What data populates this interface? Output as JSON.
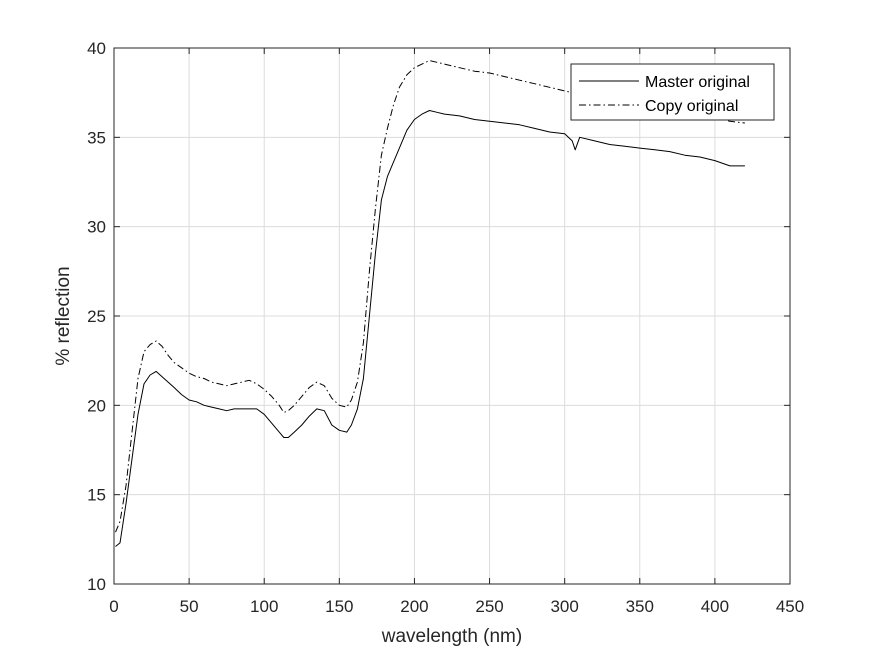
{
  "chart_data": {
    "type": "line",
    "title": "",
    "xlabel": "wavelength (nm)",
    "ylabel": "% reflection",
    "xlim": [
      0,
      450
    ],
    "ylim": [
      10,
      40
    ],
    "xticks": [
      0,
      50,
      100,
      150,
      200,
      250,
      300,
      350,
      400,
      450
    ],
    "yticks": [
      10,
      15,
      20,
      25,
      30,
      35,
      40
    ],
    "grid": true,
    "legend": {
      "location": "top-right"
    },
    "series": [
      {
        "name": "Master original",
        "style": "solid",
        "color": "#000000",
        "x": [
          1,
          4,
          8,
          12,
          16,
          20,
          24,
          28,
          32,
          36,
          40,
          45,
          50,
          55,
          60,
          65,
          70,
          75,
          80,
          85,
          90,
          95,
          100,
          105,
          110,
          113,
          116,
          120,
          125,
          130,
          135,
          140,
          145,
          150,
          155,
          158,
          162,
          166,
          170,
          174,
          178,
          182,
          186,
          190,
          195,
          200,
          205,
          210,
          215,
          220,
          230,
          240,
          250,
          260,
          270,
          280,
          290,
          300,
          305,
          307,
          310,
          320,
          330,
          340,
          350,
          360,
          370,
          380,
          390,
          400,
          410,
          420
        ],
        "y": [
          12.1,
          12.3,
          14.5,
          17.0,
          19.5,
          21.2,
          21.7,
          21.9,
          21.6,
          21.3,
          21.0,
          20.6,
          20.3,
          20.2,
          20.0,
          19.9,
          19.8,
          19.7,
          19.8,
          19.8,
          19.8,
          19.8,
          19.5,
          19.0,
          18.5,
          18.2,
          18.2,
          18.5,
          18.9,
          19.4,
          19.8,
          19.7,
          18.9,
          18.6,
          18.5,
          18.9,
          19.8,
          21.5,
          25.0,
          28.5,
          31.5,
          32.8,
          33.6,
          34.4,
          35.4,
          36.0,
          36.3,
          36.5,
          36.4,
          36.3,
          36.2,
          36.0,
          35.9,
          35.8,
          35.7,
          35.5,
          35.3,
          35.2,
          34.8,
          34.3,
          35.0,
          34.8,
          34.6,
          34.5,
          34.4,
          34.3,
          34.2,
          34.0,
          33.9,
          33.7,
          33.4,
          33.4
        ]
      },
      {
        "name": "Copy original",
        "style": "dashdot",
        "color": "#000000",
        "x": [
          1,
          4,
          8,
          12,
          16,
          20,
          24,
          28,
          32,
          36,
          40,
          45,
          50,
          55,
          60,
          65,
          70,
          75,
          80,
          85,
          90,
          95,
          100,
          105,
          110,
          113,
          116,
          120,
          125,
          130,
          135,
          140,
          145,
          150,
          155,
          158,
          162,
          166,
          170,
          174,
          178,
          182,
          186,
          190,
          195,
          200,
          205,
          210,
          215,
          220,
          230,
          240,
          250,
          260,
          270,
          280,
          290,
          300,
          305,
          307,
          310,
          320,
          330,
          340,
          350,
          360,
          370,
          380,
          390,
          400,
          410,
          420
        ],
        "y": [
          12.9,
          13.5,
          15.5,
          18.5,
          21.5,
          23.0,
          23.4,
          23.6,
          23.3,
          22.8,
          22.4,
          22.1,
          21.8,
          21.6,
          21.5,
          21.3,
          21.2,
          21.1,
          21.2,
          21.3,
          21.4,
          21.2,
          20.9,
          20.5,
          20.0,
          19.6,
          19.7,
          20.0,
          20.5,
          21.0,
          21.3,
          21.1,
          20.4,
          20.0,
          19.9,
          20.3,
          21.3,
          23.5,
          27.5,
          31.0,
          34.0,
          35.5,
          36.8,
          37.8,
          38.5,
          38.9,
          39.1,
          39.3,
          39.2,
          39.1,
          38.9,
          38.7,
          38.6,
          38.4,
          38.2,
          38.0,
          37.8,
          37.6,
          37.5,
          37.4,
          37.4,
          37.2,
          37.0,
          36.8,
          36.7,
          36.6,
          36.5,
          36.3,
          36.2,
          36.1,
          35.9,
          35.8
        ]
      }
    ]
  }
}
